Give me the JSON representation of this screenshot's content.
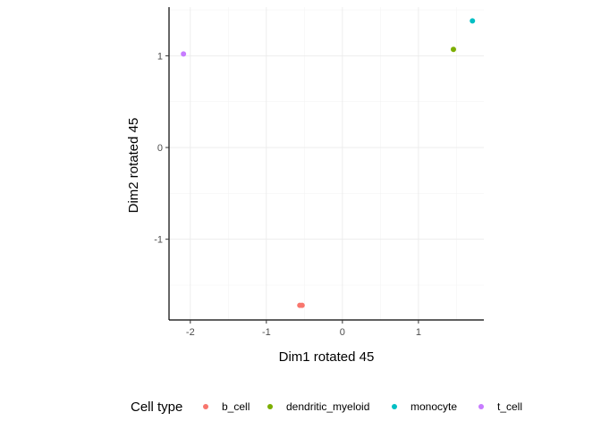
{
  "chart_data": {
    "type": "scatter",
    "xlabel": "Dim1 rotated 45",
    "ylabel": "Dim2 rotated 45",
    "xlim": [
      -2.28,
      1.86
    ],
    "ylim": [
      -1.88,
      1.53
    ],
    "x_ticks": [
      -2,
      -1,
      0,
      1
    ],
    "x_tick_labels": [
      "-2",
      "-1",
      "0",
      "1"
    ],
    "y_ticks": [
      -1,
      0,
      1
    ],
    "y_tick_labels": [
      "-1",
      "0",
      "1"
    ],
    "grid": true,
    "legend_position": "bottom",
    "legend_title": "Cell type",
    "series": [
      {
        "name": "b_cell",
        "color": "#F8766D",
        "points": [
          [
            -0.56,
            -1.72
          ],
          [
            -0.53,
            -1.72
          ]
        ]
      },
      {
        "name": "dendritic_myeloid",
        "color": "#7CAE00",
        "points": [
          [
            1.46,
            1.07
          ]
        ]
      },
      {
        "name": "monocyte",
        "color": "#00BFC4",
        "points": [
          [
            1.71,
            1.38
          ]
        ]
      },
      {
        "name": "t_cell",
        "color": "#C77CFF",
        "points": [
          [
            -2.09,
            1.02
          ]
        ]
      }
    ]
  }
}
